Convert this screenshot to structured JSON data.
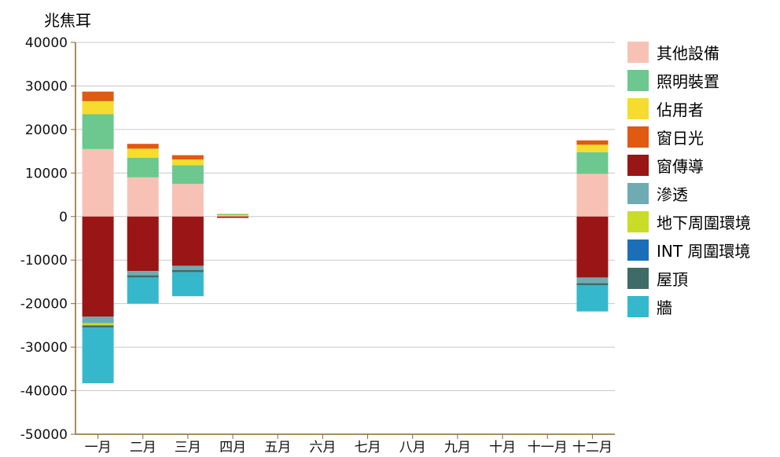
{
  "chart_data": {
    "type": "bar",
    "stacked": true,
    "unit_label": "兆焦耳",
    "ylim": [
      -50000,
      40000
    ],
    "yticks": [
      40000,
      30000,
      20000,
      10000,
      0,
      -10000,
      -20000,
      -30000,
      -40000,
      -50000
    ],
    "grid": true,
    "legend_position": "right",
    "categories": [
      "一月",
      "二月",
      "三月",
      "四月",
      "五月",
      "六月",
      "七月",
      "八月",
      "九月",
      "十月",
      "十一月",
      "十二月"
    ],
    "series": [
      {
        "name": "其他設備",
        "color": "#f7c2b5",
        "values": [
          15500,
          9000,
          7500,
          400,
          0,
          0,
          0,
          0,
          0,
          0,
          0,
          9800
        ]
      },
      {
        "name": "照明裝置",
        "color": "#6cc88e",
        "values": [
          8000,
          4500,
          4300,
          100,
          0,
          0,
          0,
          0,
          0,
          0,
          0,
          5000
        ]
      },
      {
        "name": "佔用者",
        "color": "#f6dc2e",
        "values": [
          3000,
          2100,
          1300,
          200,
          0,
          0,
          0,
          0,
          0,
          0,
          0,
          1700
        ]
      },
      {
        "name": "窗日光",
        "color": "#e05a12",
        "values": [
          2200,
          1100,
          1000,
          0,
          0,
          0,
          0,
          0,
          0,
          0,
          0,
          1000
        ]
      },
      {
        "name": "窗傳導",
        "color": "#9a1515",
        "values": [
          -23000,
          -12500,
          -11300,
          -300,
          0,
          0,
          0,
          0,
          0,
          0,
          0,
          -14000
        ]
      },
      {
        "name": "滲透",
        "color": "#6fabb2",
        "values": [
          -1500,
          -1000,
          -1000,
          0,
          0,
          0,
          0,
          0,
          0,
          0,
          0,
          -1300
        ]
      },
      {
        "name": "地下周圍環境",
        "color": "#c8dc28",
        "values": [
          -500,
          0,
          0,
          0,
          0,
          0,
          0,
          0,
          0,
          0,
          0,
          0
        ]
      },
      {
        "name": "INT 周圍環境",
        "color": "#1a6fb8",
        "values": [
          0,
          0,
          0,
          0,
          0,
          0,
          0,
          0,
          0,
          0,
          0,
          0
        ]
      },
      {
        "name": "屋頂",
        "color": "#3f6b66",
        "values": [
          -500,
          -500,
          -500,
          0,
          0,
          0,
          0,
          0,
          0,
          0,
          0,
          -500
        ]
      },
      {
        "name": "牆",
        "color": "#35b8cc",
        "values": [
          -12800,
          -6000,
          -5500,
          0,
          0,
          0,
          0,
          0,
          0,
          0,
          0,
          -6000
        ]
      }
    ]
  }
}
